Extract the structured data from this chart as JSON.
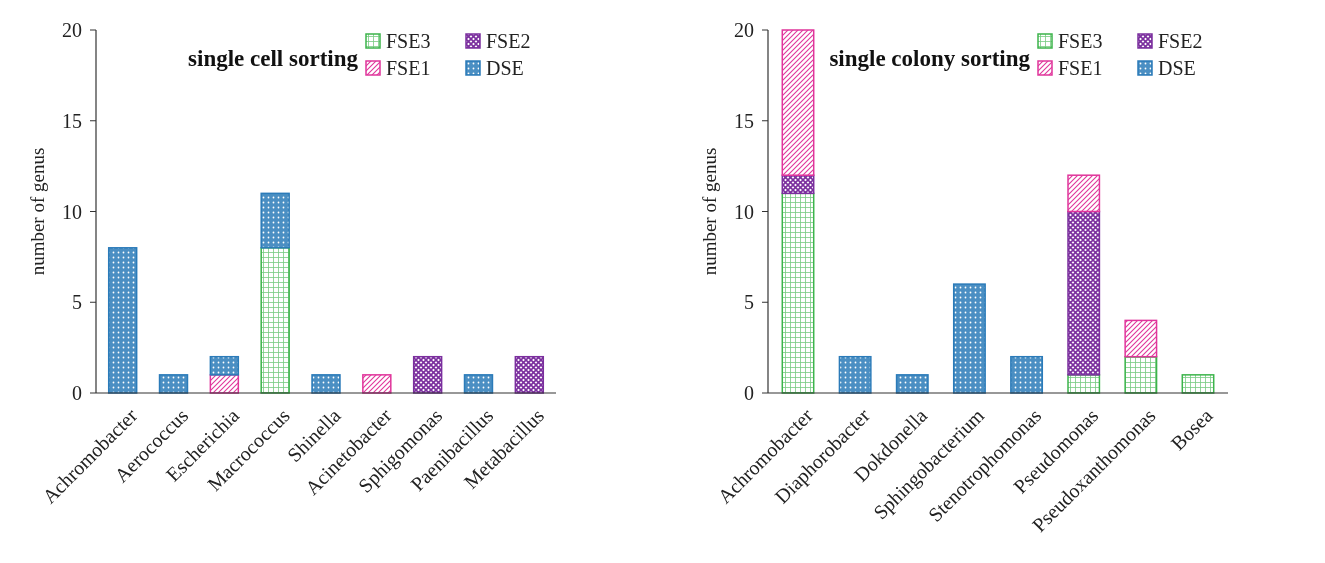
{
  "chart_data": [
    {
      "type": "bar",
      "title": "single cell sorting",
      "ylabel": "number of genus",
      "stacked": true,
      "legend": "top right",
      "categories": [
        "Achromobacter",
        "Aerococcus",
        "Escherichia",
        "Macrococcus",
        "Shinella",
        "Acinetobacter",
        "Sphigomonas",
        "Paenibacillus",
        "Metabacillus"
      ],
      "ylim": [
        0,
        20
      ],
      "yticks": [
        0,
        5,
        10,
        15,
        20
      ],
      "series": [
        {
          "name": "FSE3",
          "color": "#3cb44b",
          "values": [
            0,
            0,
            0,
            8,
            0,
            0,
            0,
            0,
            0
          ]
        },
        {
          "name": "FSE2",
          "color": "#7b2f9e",
          "values": [
            0,
            0,
            0,
            0,
            0,
            0,
            2,
            0,
            2
          ]
        },
        {
          "name": "FSE1",
          "color": "#e0359b",
          "values": [
            0,
            0,
            1,
            0,
            0,
            1,
            0,
            0,
            0
          ]
        },
        {
          "name": "DSE",
          "color": "#2b7bb9",
          "values": [
            8,
            1,
            1,
            3,
            1,
            0,
            0,
            1,
            0
          ]
        }
      ]
    },
    {
      "type": "bar",
      "title": "single colony sorting",
      "ylabel": "number of genus",
      "stacked": true,
      "legend": "top right",
      "categories": [
        "Achromobacter",
        "Diaphorobacter",
        "Dokdonella",
        "Sphingobacterium",
        "Stenotrophomonas",
        "Pseudomonas",
        "Pseudoxanthomonas",
        "Bosea"
      ],
      "ylim": [
        0,
        20
      ],
      "yticks": [
        0,
        5,
        10,
        15,
        20
      ],
      "series": [
        {
          "name": "FSE3",
          "color": "#3cb44b",
          "values": [
            11,
            0,
            0,
            0,
            0,
            1,
            2,
            1
          ]
        },
        {
          "name": "FSE2",
          "color": "#7b2f9e",
          "values": [
            1,
            0,
            0,
            0,
            0,
            9,
            0,
            0
          ]
        },
        {
          "name": "FSE1",
          "color": "#e0359b",
          "values": [
            8,
            0,
            0,
            0,
            0,
            2,
            2,
            0
          ]
        },
        {
          "name": "DSE",
          "color": "#2b7bb9",
          "values": [
            0,
            2,
            1,
            6,
            2,
            0,
            0,
            0
          ]
        }
      ]
    }
  ]
}
